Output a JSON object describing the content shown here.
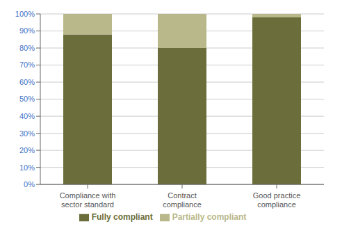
{
  "chart_data": {
    "type": "bar",
    "categories": [
      "Compliance with\nsector standard",
      "Contract\ncompliance",
      "Good practice\ncompliance"
    ],
    "series": [
      {
        "name": "Fully compliant",
        "color": "#6b6e3a",
        "values": [
          88,
          80,
          98
        ]
      },
      {
        "name": "Partially compliant",
        "color": "#b8b88a",
        "values": [
          12,
          20,
          2
        ]
      }
    ],
    "stacked": true,
    "ylim": [
      0,
      100
    ],
    "yticks": [
      {
        "value": 0,
        "label": "0%"
      },
      {
        "value": 10,
        "label": "10%"
      },
      {
        "value": 20,
        "label": "20%"
      },
      {
        "value": 30,
        "label": "30%"
      },
      {
        "value": 40,
        "label": "40%"
      },
      {
        "value": 50,
        "label": "50%"
      },
      {
        "value": 60,
        "label": "60%"
      },
      {
        "value": 70,
        "label": "70%"
      },
      {
        "value": 80,
        "label": "80%"
      },
      {
        "value": 90,
        "label": "90%"
      },
      {
        "value": 100,
        "label": "100%"
      }
    ],
    "grid": true,
    "legend": "bottom"
  }
}
